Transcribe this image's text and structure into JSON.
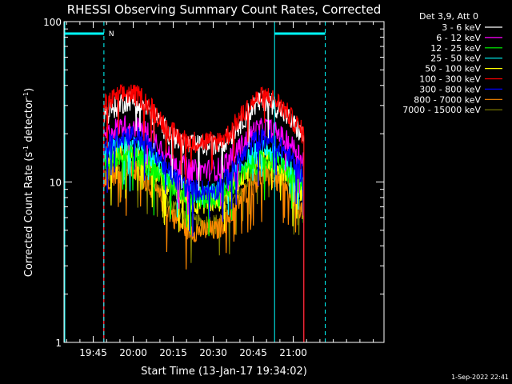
{
  "chart_data": {
    "type": "line",
    "title": "RHESSI Observing Summary Count Rates, Corrected",
    "xlabel": "Start Time (13-Jan-17 19:34:02)",
    "ylabel_main": "Corrected Count Rate (s",
    "ylabel_sup1": "-1",
    "ylabel_mid": " detector",
    "ylabel_sup2": "-1",
    "ylabel_end": ")",
    "y_scale": "log",
    "ylim": [
      1,
      100
    ],
    "xlim_minutes_after_start": [
      0,
      120
    ],
    "x_ticks": [
      "19:45",
      "20:00",
      "20:15",
      "20:30",
      "20:45",
      "21:00"
    ],
    "y_ticks": [
      "1",
      "10",
      "100"
    ],
    "legend_title": "Det 3,9, Att 0",
    "legend_position": "top-right",
    "timestamp": "1-Sep-2022 22:41",
    "night_label": "N",
    "data_window": [
      "19:49",
      "21:04"
    ],
    "night_intervals": [
      [
        "19:34",
        "19:49"
      ],
      [
        "20:53",
        "21:12"
      ]
    ],
    "series": [
      {
        "name": "3 - 6 keV",
        "color": "#ffffff",
        "values": [
          26,
          30,
          33,
          31,
          26,
          21,
          18,
          17,
          17,
          17,
          19,
          24,
          30,
          33,
          29,
          24,
          19
        ]
      },
      {
        "name": "6 - 12 keV",
        "color": "#ff00ff",
        "values": [
          19,
          22,
          23,
          22,
          19,
          15,
          13,
          12,
          12,
          12,
          14,
          17,
          21,
          22,
          20,
          17,
          14
        ]
      },
      {
        "name": "12 - 25 keV",
        "color": "#00ff00",
        "values": [
          13,
          14,
          15,
          14,
          12,
          10,
          9,
          8,
          8,
          8,
          9,
          11,
          13,
          14,
          13,
          11,
          9
        ]
      },
      {
        "name": "25 - 50 keV",
        "color": "#00ffff",
        "values": [
          15,
          17,
          17,
          16,
          14,
          11,
          9.5,
          8.5,
          8.5,
          8.5,
          10,
          12.5,
          15,
          16,
          14.5,
          12,
          10
        ]
      },
      {
        "name": "50 - 100 keV",
        "color": "#ffff00",
        "values": [
          13,
          15,
          15,
          14,
          12,
          10,
          8.5,
          7.5,
          7.5,
          7.5,
          8.5,
          11,
          13,
          14,
          13,
          10.5,
          8.5
        ]
      },
      {
        "name": "100 - 300 keV",
        "color": "#ff0000",
        "values": [
          30,
          34,
          36,
          34,
          28,
          22,
          19,
          18,
          18,
          18,
          20,
          26,
          32,
          35,
          31,
          25,
          20
        ]
      },
      {
        "name": "300 - 800 keV",
        "color": "#0000ff",
        "values": [
          16,
          19,
          20,
          19,
          16,
          12,
          10,
          9,
          9,
          9,
          11,
          14,
          18,
          19,
          17,
          14,
          11
        ]
      },
      {
        "name": "800 - 7000 keV",
        "color": "#ff8800",
        "values": [
          10,
          11.5,
          12,
          11,
          9,
          7,
          5.5,
          5,
          5,
          5,
          6,
          8,
          10,
          11,
          10,
          8,
          6.5
        ]
      },
      {
        "name": "7000 - 15000 keV",
        "color": "#808000",
        "values": [
          11,
          12.5,
          13,
          12,
          10,
          7.5,
          6.5,
          5.5,
          5.5,
          5.5,
          6.5,
          9,
          11,
          12,
          11,
          9,
          7
        ]
      }
    ]
  }
}
